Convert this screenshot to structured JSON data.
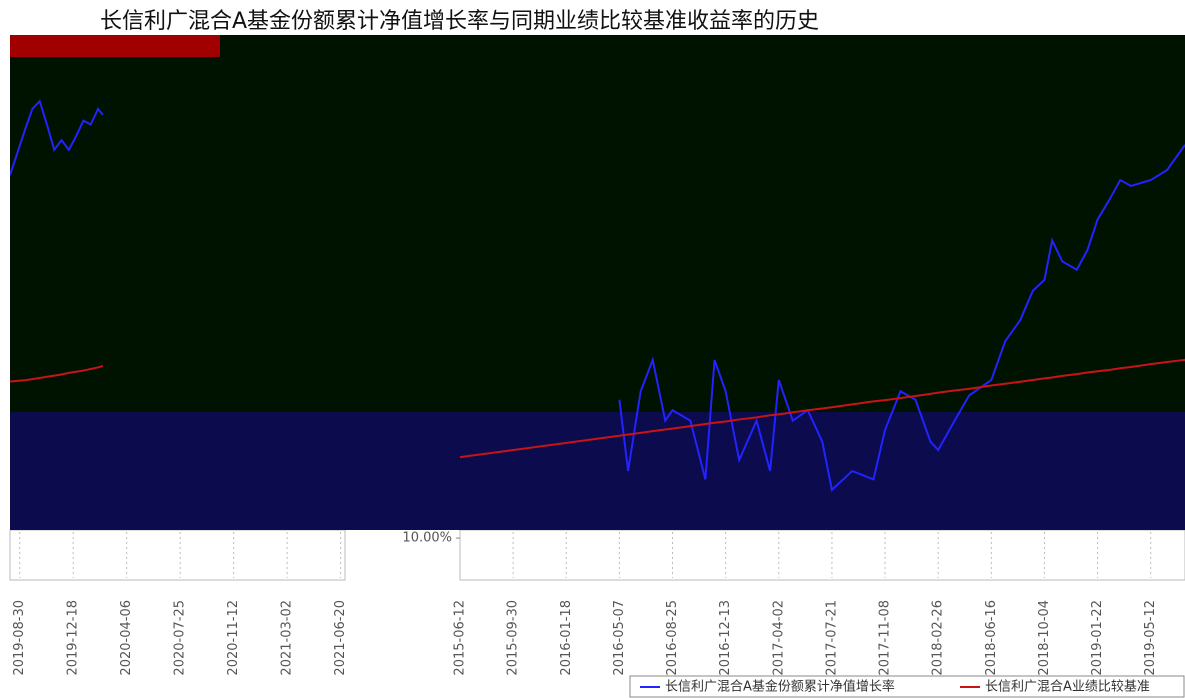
{
  "chart_data": [
    {
      "type": "line",
      "x": [
        "2019-08-10",
        "2019-09-10",
        "2019-09-25",
        "2019-10-10",
        "2019-10-25",
        "2019-11-09",
        "2019-11-24",
        "2019-12-09",
        "2019-12-24",
        "2020-01-08",
        "2020-01-23",
        "2020-02-07",
        "2020-02-17"
      ],
      "series": [
        {
          "color": "#2323ff",
          "values": [
            84,
            95.7,
            101,
            103,
            97,
            90.5,
            93,
            90.5,
            94,
            98,
            97,
            101,
            99.5
          ]
        },
        {
          "color": "#c81414",
          "values": [
            31,
            31.3,
            31.6,
            31.9,
            32.2,
            32.5,
            32.8,
            33.2,
            33.5,
            33.8,
            34.2,
            34.6,
            35
          ]
        }
      ],
      "xlim": [
        "2019-08-10",
        "2021-06-29"
      ],
      "ylim": [
        -20,
        120
      ],
      "xticks": [
        "2019-08-30",
        "2019-12-18",
        "2020-04-06",
        "2020-07-25",
        "2020-11-12",
        "2021-03-02",
        "2021-06-20"
      ]
    },
    {
      "type": "line",
      "title": "长信利广混合A基金份额累计净值增长率与同期业绩比较基准收益率的历史",
      "x": [
        "2015-06-12",
        "2016-05-07",
        "2016-05-25",
        "2016-06-20",
        "2016-07-15",
        "2016-08-10",
        "2016-08-25",
        "2016-10-01",
        "2016-11-01",
        "2016-11-20",
        "2016-12-13",
        "2017-01-10",
        "2017-02-15",
        "2017-03-15",
        "2017-04-02",
        "2017-05-01",
        "2017-06-01",
        "2017-07-01",
        "2017-07-21",
        "2017-09-01",
        "2017-10-15",
        "2017-11-08",
        "2017-12-10",
        "2018-01-10",
        "2018-02-10",
        "2018-02-26",
        "2018-04-01",
        "2018-05-01",
        "2018-06-16",
        "2018-07-15",
        "2018-08-15",
        "2018-09-10",
        "2018-10-04",
        "2018-10-20",
        "2018-11-10",
        "2018-12-10",
        "2019-01-01",
        "2019-01-22",
        "2019-02-15",
        "2019-03-10",
        "2019-04-01",
        "2019-05-12",
        "2019-06-15",
        "2019-07-22"
      ],
      "series": [
        {
          "name": "长信利广混合A基金份额累计净值增长率",
          "color": "#2323ff",
          "values": [
            null,
            43,
            26,
            45,
            52.5,
            38,
            40.5,
            38,
            24,
            52.5,
            45,
            28.6,
            38,
            26,
            47.7,
            38,
            40.5,
            33,
            21.5,
            26,
            24,
            35.8,
            45,
            43,
            33,
            31,
            38,
            44,
            47.7,
            57,
            62,
            69,
            71.6,
            81,
            76,
            74,
            78.7,
            86,
            90.6,
            95.4,
            94,
            95.4,
            97.8,
            103.8
          ]
        },
        {
          "name": "长信利广混合A业绩比较基准",
          "color": "#c81414",
          "values": [
            29.3,
            34.4,
            34.7,
            35.1,
            35.5,
            35.9,
            36.1,
            36.7,
            37.2,
            37.5,
            37.8,
            38.3,
            38.8,
            39.3,
            39.5,
            40,
            40.5,
            40.9,
            41.2,
            41.9,
            42.6,
            42.9,
            43.4,
            43.9,
            44.4,
            44.7,
            45.2,
            45.6,
            46.4,
            46.8,
            47.3,
            47.7,
            48.1,
            48.3,
            48.7,
            49.1,
            49.5,
            49.8,
            50.1,
            50.5,
            50.8,
            51.5,
            52,
            52.5
          ]
        }
      ],
      "xlim": [
        "2015-06-12",
        "2019-07-22"
      ],
      "ylim": [
        0,
        130
      ],
      "yticks": [
        {
          "value": 10,
          "label": "10.00%"
        }
      ],
      "xticks": [
        "2015-06-12",
        "2015-09-30",
        "2016-01-18",
        "2016-05-07",
        "2016-08-25",
        "2016-12-13",
        "2017-04-02",
        "2017-07-21",
        "2017-11-08",
        "2018-02-26",
        "2018-06-16",
        "2018-10-04",
        "2019-01-22",
        "2019-05-12"
      ]
    }
  ]
}
